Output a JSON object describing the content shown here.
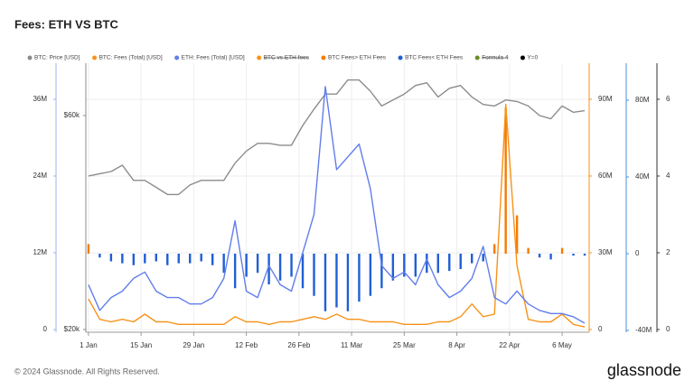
{
  "chart_data": {
    "type": "combo",
    "title": "Fees: ETH VS BTC",
    "x": [
      0,
      3,
      6,
      9,
      12,
      15,
      18,
      21,
      24,
      27,
      30,
      33,
      36,
      39,
      42,
      45,
      48,
      51,
      54,
      57,
      60,
      63,
      66,
      69,
      72,
      75,
      78,
      81,
      84,
      87,
      90,
      93,
      96,
      99,
      102,
      105,
      108,
      111,
      114,
      117,
      120,
      123,
      126,
      129,
      132
    ],
    "xlim": [
      -0.7,
      133.2
    ],
    "xticks": [
      {
        "value": 0,
        "label": "1 Jan"
      },
      {
        "value": 14,
        "label": "15 Jan"
      },
      {
        "value": 28,
        "label": "29 Jan"
      },
      {
        "value": 42,
        "label": "12 Feb"
      },
      {
        "value": 56,
        "label": "26 Feb"
      },
      {
        "value": 70,
        "label": "11 Mar"
      },
      {
        "value": 84,
        "label": "25 Mar"
      },
      {
        "value": 98,
        "label": "8 Apr"
      },
      {
        "value": 112,
        "label": "22 Apr"
      },
      {
        "value": 126,
        "label": "6 May"
      }
    ],
    "grid": true,
    "axes": {
      "eth": {
        "side": "left",
        "color": "#9fb2ee",
        "ylim": [
          -420000,
          41650000
        ],
        "yticks": [
          0,
          {
            "value": 12000000,
            "label": "12M"
          },
          {
            "value": 24000000,
            "label": "24M"
          },
          {
            "value": 36000000,
            "label": "36M"
          }
        ]
      },
      "price": {
        "side": "left",
        "color": "#8c8c8c",
        "log": true,
        "ylim": [
          19720,
          78500
        ],
        "yticks": [
          {
            "value": 20000,
            "label": "$20k"
          },
          {
            "value": 60000,
            "label": "$60k"
          }
        ]
      },
      "btcfees": {
        "side": "right",
        "color": "#f7931a",
        "ylim": [
          -1060000,
          104100000
        ],
        "yticks": [
          0,
          {
            "value": 30000000,
            "label": "30M"
          },
          {
            "value": 60000000,
            "label": "60M"
          },
          {
            "value": 90000000,
            "label": "90M"
          }
        ]
      },
      "diff": {
        "side": "right",
        "color": "#4a90d9",
        "ylim": [
          -40940000,
          99290000
        ],
        "yticks": [
          {
            "value": -40000000,
            "label": "-40M"
          },
          0,
          {
            "value": 40000000,
            "label": "40M"
          },
          {
            "value": 80000000,
            "label": "80M"
          }
        ]
      },
      "formula": {
        "side": "right",
        "color": "#333333",
        "ylim": [
          -0.07,
          6.94
        ],
        "yticks": [
          0,
          2,
          4,
          6
        ]
      }
    },
    "series": [
      {
        "name": "BTC: Price [USD]",
        "color": "#8c8c8c",
        "kind": "line",
        "axis": "price",
        "values": [
          44000,
          44500,
          45000,
          46500,
          43000,
          43000,
          41500,
          40000,
          40000,
          42000,
          43000,
          43000,
          43000,
          47000,
          50000,
          52000,
          52000,
          51500,
          51500,
          57000,
          62000,
          67000,
          67000,
          72000,
          72000,
          68000,
          63000,
          65000,
          67000,
          70000,
          71000,
          66000,
          69000,
          70000,
          66000,
          63500,
          63000,
          65000,
          64500,
          63000,
          60000,
          59000,
          63000,
          61000,
          61500
        ]
      },
      {
        "name": "BTC: Fees (Total) [USD]",
        "color": "#f7931a",
        "kind": "line",
        "axis": "btcfees",
        "values": [
          12000000,
          4000000,
          3000000,
          4000000,
          3000000,
          6000000,
          3000000,
          3000000,
          2000000,
          2000000,
          2000000,
          2000000,
          2000000,
          5000000,
          3000000,
          3000000,
          2000000,
          3000000,
          3000000,
          4000000,
          5000000,
          4000000,
          6000000,
          4000000,
          4000000,
          3000000,
          3000000,
          3000000,
          2000000,
          2000000,
          2000000,
          3000000,
          3000000,
          5000000,
          10000000,
          5000000,
          6000000,
          88000000,
          25000000,
          4000000,
          3000000,
          3000000,
          6000000,
          2000000,
          1000000
        ]
      },
      {
        "name": "ETH: Fees (Total) [USD]",
        "color": "#627eea",
        "kind": "line",
        "axis": "eth",
        "values": [
          7000000,
          3000000,
          5000000,
          6000000,
          8000000,
          9000000,
          6000000,
          5000000,
          5000000,
          4000000,
          4000000,
          5000000,
          8000000,
          17000000,
          6000000,
          5000000,
          10000000,
          7000000,
          6000000,
          12000000,
          18000000,
          38000000,
          25000000,
          27000000,
          29000000,
          22000000,
          10000000,
          8000000,
          9000000,
          7000000,
          11000000,
          7000000,
          5000000,
          6000000,
          8000000,
          13000000,
          5000000,
          4000000,
          6000000,
          4000000,
          3000000,
          2500000,
          2500000,
          2000000,
          1000000
        ]
      },
      {
        "name": "BTC vs ETH fees",
        "color": "#f7931a",
        "kind": "none",
        "hidden": true
      },
      {
        "name": "BTC Fees> ETH Fees",
        "color": "#f57c00",
        "kind": "bar",
        "axis": "diff",
        "values": [
          5000000,
          null,
          null,
          null,
          null,
          null,
          null,
          null,
          null,
          null,
          null,
          null,
          null,
          null,
          null,
          null,
          null,
          null,
          null,
          null,
          null,
          null,
          null,
          null,
          null,
          null,
          null,
          null,
          null,
          null,
          null,
          null,
          null,
          null,
          null,
          null,
          5000000,
          76000000,
          20000000,
          3000000,
          null,
          null,
          3000000,
          null,
          null
        ]
      },
      {
        "name": "BTC Fees< ETH Fees",
        "color": "#1f5fd6",
        "kind": "bar",
        "axis": "diff",
        "values": [
          null,
          -2000000,
          -4000000,
          -5000000,
          -6000000,
          -5000000,
          -4000000,
          -6000000,
          -5000000,
          -5000000,
          -4000000,
          -6000000,
          -10000000,
          -18000000,
          -12000000,
          -10000000,
          -16000000,
          -14000000,
          -12000000,
          -18000000,
          -22000000,
          -30000000,
          -28000000,
          -30000000,
          -25000000,
          -22000000,
          -18000000,
          -14000000,
          -12000000,
          -12000000,
          -10000000,
          -10000000,
          -9000000,
          -8000000,
          -5000000,
          -4000000,
          null,
          null,
          null,
          null,
          -2000000,
          -3000000,
          null,
          -1000000,
          -1000000
        ]
      },
      {
        "name": "Formula 4",
        "color": "#6b8e23",
        "kind": "none",
        "hidden": true
      },
      {
        "name": "Y=0",
        "color": "#000000",
        "kind": "none"
      }
    ]
  },
  "footer": {
    "copyright": "© 2024 Glassnode. All Rights Reserved.",
    "logo": "glassnode"
  }
}
